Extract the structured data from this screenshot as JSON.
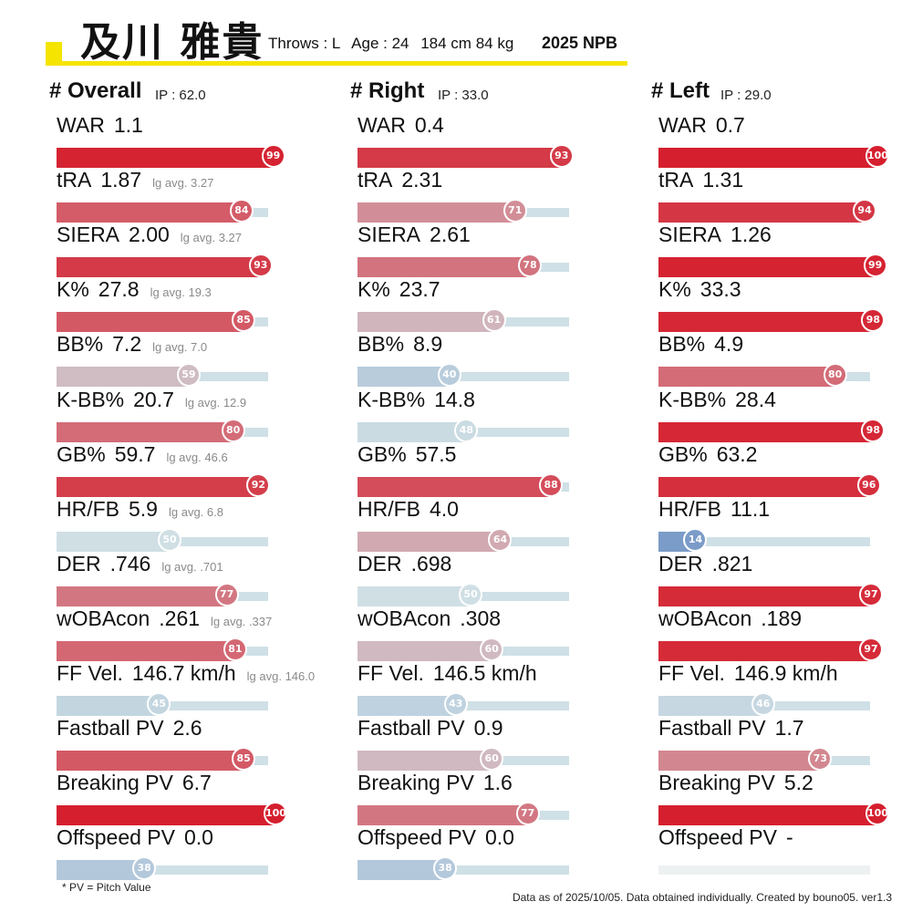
{
  "header": {
    "name": "及川 雅貴",
    "throws": "Throws : L",
    "age": "Age : 24",
    "height_weight": "184 cm 84 kg",
    "season": "2025 NPB"
  },
  "colors": {
    "accent": "#f5e400",
    "high": "#d51f2e",
    "neutral": "#cfdfe4",
    "low": "#5b80bd",
    "track": "#cfe0e6"
  },
  "chart_data": {
    "type": "bar",
    "value_range": [
      0,
      100
    ],
    "panels": [
      {
        "title": "# Overall",
        "ip": "IP : 62.0",
        "metrics": [
          {
            "label": "WAR",
            "value": "1.1",
            "lg_avg": "",
            "percentile": 99
          },
          {
            "label": "tRA",
            "value": "1.87",
            "lg_avg": "lg avg. 3.27",
            "percentile": 84
          },
          {
            "label": "SIERA",
            "value": "2.00",
            "lg_avg": "lg avg. 3.27",
            "percentile": 93
          },
          {
            "label": "K%",
            "value": "27.8",
            "lg_avg": "lg avg. 19.3",
            "percentile": 85
          },
          {
            "label": "BB%",
            "value": "7.2",
            "lg_avg": "lg avg. 7.0",
            "percentile": 59
          },
          {
            "label": "K-BB%",
            "value": "20.7",
            "lg_avg": "lg avg. 12.9",
            "percentile": 80
          },
          {
            "label": "GB%",
            "value": "59.7",
            "lg_avg": "lg avg. 46.6",
            "percentile": 92
          },
          {
            "label": "HR/FB",
            "value": "5.9",
            "lg_avg": "lg avg. 6.8",
            "percentile": 50
          },
          {
            "label": "DER",
            "value": ".746",
            "lg_avg": "lg avg. .701",
            "percentile": 77
          },
          {
            "label": "wOBAcon",
            "value": ".261",
            "lg_avg": "lg avg. .337",
            "percentile": 81
          },
          {
            "label": "FF Vel.",
            "value": "146.7 km/h",
            "lg_avg": "lg avg. 146.0",
            "percentile": 45
          },
          {
            "label": "Fastball PV",
            "value": "2.6",
            "lg_avg": "",
            "percentile": 85
          },
          {
            "label": "Breaking PV",
            "value": "6.7",
            "lg_avg": "",
            "percentile": 100
          },
          {
            "label": "Offspeed PV",
            "value": "0.0",
            "lg_avg": "",
            "percentile": 38
          }
        ]
      },
      {
        "title": "# Right",
        "ip": "IP : 33.0",
        "metrics": [
          {
            "label": "WAR",
            "value": "0.4",
            "lg_avg": "",
            "percentile": 93
          },
          {
            "label": "tRA",
            "value": "2.31",
            "lg_avg": "",
            "percentile": 71
          },
          {
            "label": "SIERA",
            "value": "2.61",
            "lg_avg": "",
            "percentile": 78
          },
          {
            "label": "K%",
            "value": "23.7",
            "lg_avg": "",
            "percentile": 61
          },
          {
            "label": "BB%",
            "value": "8.9",
            "lg_avg": "",
            "percentile": 40
          },
          {
            "label": "K-BB%",
            "value": "14.8",
            "lg_avg": "",
            "percentile": 48
          },
          {
            "label": "GB%",
            "value": "57.5",
            "lg_avg": "",
            "percentile": 88
          },
          {
            "label": "HR/FB",
            "value": "4.0",
            "lg_avg": "",
            "percentile": 64
          },
          {
            "label": "DER",
            "value": ".698",
            "lg_avg": "",
            "percentile": 50
          },
          {
            "label": "wOBAcon",
            "value": ".308",
            "lg_avg": "",
            "percentile": 60
          },
          {
            "label": "FF Vel.",
            "value": "146.5 km/h",
            "lg_avg": "",
            "percentile": 43
          },
          {
            "label": "Fastball PV",
            "value": "0.9",
            "lg_avg": "",
            "percentile": 60
          },
          {
            "label": "Breaking PV",
            "value": "1.6",
            "lg_avg": "",
            "percentile": 77
          },
          {
            "label": "Offspeed PV",
            "value": "0.0",
            "lg_avg": "",
            "percentile": 38
          }
        ]
      },
      {
        "title": "# Left",
        "ip": "IP : 29.0",
        "metrics": [
          {
            "label": "WAR",
            "value": "0.7",
            "lg_avg": "",
            "percentile": 100
          },
          {
            "label": "tRA",
            "value": "1.31",
            "lg_avg": "",
            "percentile": 94
          },
          {
            "label": "SIERA",
            "value": "1.26",
            "lg_avg": "",
            "percentile": 99
          },
          {
            "label": "K%",
            "value": "33.3",
            "lg_avg": "",
            "percentile": 98
          },
          {
            "label": "BB%",
            "value": "4.9",
            "lg_avg": "",
            "percentile": 80
          },
          {
            "label": "K-BB%",
            "value": "28.4",
            "lg_avg": "",
            "percentile": 98
          },
          {
            "label": "GB%",
            "value": "63.2",
            "lg_avg": "",
            "percentile": 96
          },
          {
            "label": "HR/FB",
            "value": "11.1",
            "lg_avg": "",
            "percentile": 14
          },
          {
            "label": "DER",
            "value": ".821",
            "lg_avg": "",
            "percentile": 97
          },
          {
            "label": "wOBAcon",
            "value": ".189",
            "lg_avg": "",
            "percentile": 97
          },
          {
            "label": "FF Vel.",
            "value": "146.9 km/h",
            "lg_avg": "",
            "percentile": 46
          },
          {
            "label": "Fastball PV",
            "value": "1.7",
            "lg_avg": "",
            "percentile": 73
          },
          {
            "label": "Breaking PV",
            "value": "5.2",
            "lg_avg": "",
            "percentile": 100
          },
          {
            "label": "Offspeed PV",
            "value": "-",
            "lg_avg": "",
            "percentile": null
          }
        ]
      }
    ]
  },
  "footer": {
    "footnote": "* PV = Pitch Value",
    "credits": "Data as of 2025/10/05. Data obtained individually. Created by bouno05.  ver1.3"
  }
}
